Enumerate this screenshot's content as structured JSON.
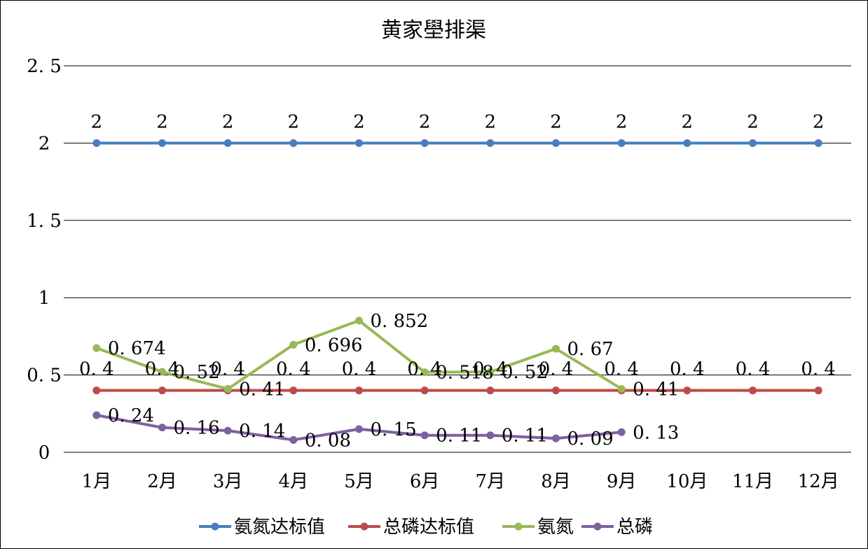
{
  "chart_data": {
    "type": "line",
    "title": "黄家壆排渠",
    "xlabel": "",
    "ylabel": "",
    "categories": [
      "1月",
      "2月",
      "3月",
      "4月",
      "5月",
      "6月",
      "7月",
      "8月",
      "9月",
      "10月",
      "11月",
      "12月"
    ],
    "ylim": [
      0,
      2.5
    ],
    "yticks": [
      0,
      0.5,
      1,
      1.5,
      2,
      2.5
    ],
    "ytick_labels": [
      "0",
      "0. 5",
      "1",
      "1. 5",
      "2",
      "2. 5"
    ],
    "grid": true,
    "legend_position": "bottom",
    "series": [
      {
        "name": "氨氮达标值",
        "color": "#4a7ebb",
        "values": [
          2,
          2,
          2,
          2,
          2,
          2,
          2,
          2,
          2,
          2,
          2,
          2
        ],
        "labels": [
          "2",
          "2",
          "2",
          "2",
          "2",
          "2",
          "2",
          "2",
          "2",
          "2",
          "2",
          "2"
        ],
        "label_pos": "above"
      },
      {
        "name": "总磷达标值",
        "color": "#be4b48",
        "values": [
          0.4,
          0.4,
          0.4,
          0.4,
          0.4,
          0.4,
          0.4,
          0.4,
          0.4,
          0.4,
          0.4,
          0.4
        ],
        "labels": [
          "0. 4",
          "0. 4",
          "0. 4",
          "0. 4",
          "0. 4",
          "0. 4",
          "0. 4",
          "0. 4",
          "0. 4",
          "0. 4",
          "0. 4",
          "0. 4"
        ],
        "label_pos": "above"
      },
      {
        "name": "氨氮",
        "color": "#98b954",
        "values": [
          0.674,
          0.52,
          0.41,
          0.696,
          0.852,
          0.518,
          0.52,
          0.67,
          0.41,
          null,
          null,
          null
        ],
        "labels": [
          "0. 674",
          "0. 52",
          "0. 41",
          "0. 696",
          "0. 852",
          "0. 518",
          "0. 52",
          "0. 67",
          "0. 41",
          null,
          null,
          null
        ],
        "label_pos": "right"
      },
      {
        "name": "总磷",
        "color": "#7d60a0",
        "values": [
          0.24,
          0.16,
          0.14,
          0.08,
          0.15,
          0.11,
          0.11,
          0.09,
          0.13,
          null,
          null,
          null
        ],
        "labels": [
          "0. 24",
          "0. 16",
          "0. 14",
          "0. 08",
          "0. 15",
          "0. 11",
          "0. 11",
          "0. 09",
          "0. 13",
          null,
          null,
          null
        ],
        "label_pos": "right"
      }
    ]
  }
}
